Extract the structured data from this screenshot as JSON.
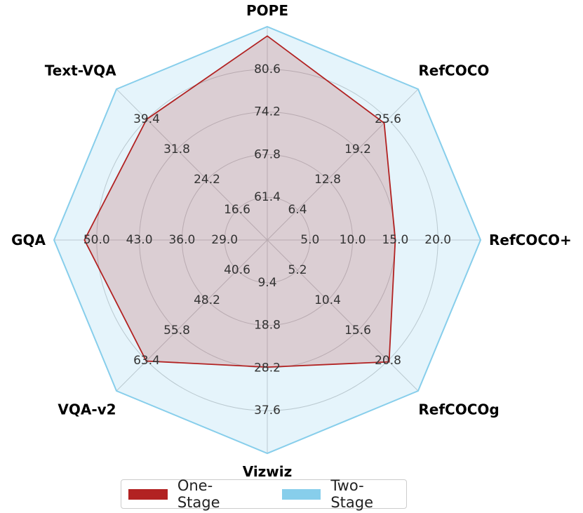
{
  "chart_data": {
    "type": "radar",
    "axes": [
      {
        "label": "POPE",
        "ticks": [
          "61.4",
          "67.8",
          "74.2",
          "80.6"
        ],
        "tick_values": [
          61.4,
          67.8,
          74.2,
          80.6
        ],
        "range": [
          55,
          87
        ]
      },
      {
        "label": "RefCOCO",
        "ticks": [
          "6.4",
          "12.8",
          "19.2",
          "25.6"
        ],
        "tick_values": [
          6.4,
          12.8,
          19.2,
          25.6
        ],
        "range": [
          0,
          32
        ]
      },
      {
        "label": "RefCOCO+",
        "ticks": [
          "5.0",
          "10.0",
          "15.0",
          "20.0"
        ],
        "tick_values": [
          5.0,
          10.0,
          15.0,
          20.0
        ],
        "range": [
          0,
          25
        ]
      },
      {
        "label": "RefCOCOg",
        "ticks": [
          "5.2",
          "10.4",
          "15.6",
          "20.8"
        ],
        "tick_values": [
          5.2,
          10.4,
          15.6,
          20.8
        ],
        "range": [
          0,
          26
        ]
      },
      {
        "label": "Vizwiz",
        "ticks": [
          "9.4",
          "18.8",
          "28.2",
          "37.6"
        ],
        "tick_values": [
          9.4,
          18.8,
          28.2,
          37.6
        ],
        "range": [
          0,
          47
        ]
      },
      {
        "label": "VQA-v2",
        "ticks": [
          "40.6",
          "48.2",
          "55.8",
          "63.4"
        ],
        "tick_values": [
          40.6,
          48.2,
          55.8,
          63.4
        ],
        "range": [
          33,
          71
        ]
      },
      {
        "label": "GQA",
        "ticks": [
          "29.0",
          "36.0",
          "43.0",
          "50.0"
        ],
        "tick_values": [
          29.0,
          36.0,
          43.0,
          50.0
        ],
        "range": [
          22,
          57
        ]
      },
      {
        "label": "Text-VQA",
        "ticks": [
          "16.6",
          "24.2",
          "31.8",
          "39.4"
        ],
        "tick_values": [
          16.6,
          24.2,
          31.8,
          39.4
        ],
        "range": [
          9,
          47
        ]
      }
    ],
    "series": [
      {
        "name": "Two-Stage",
        "values": [
          87.0,
          32.0,
          25.0,
          26.0,
          47.0,
          71.0,
          57.0,
          47.0
        ],
        "color": "#87CEEB"
      },
      {
        "name": "One-Stage",
        "values": [
          85.6,
          24.8,
          15.0,
          21.0,
          28.0,
          63.5,
          52.0,
          39.4
        ],
        "color": "#B22222"
      }
    ],
    "gridlines": true,
    "legend_position": "bottom"
  }
}
